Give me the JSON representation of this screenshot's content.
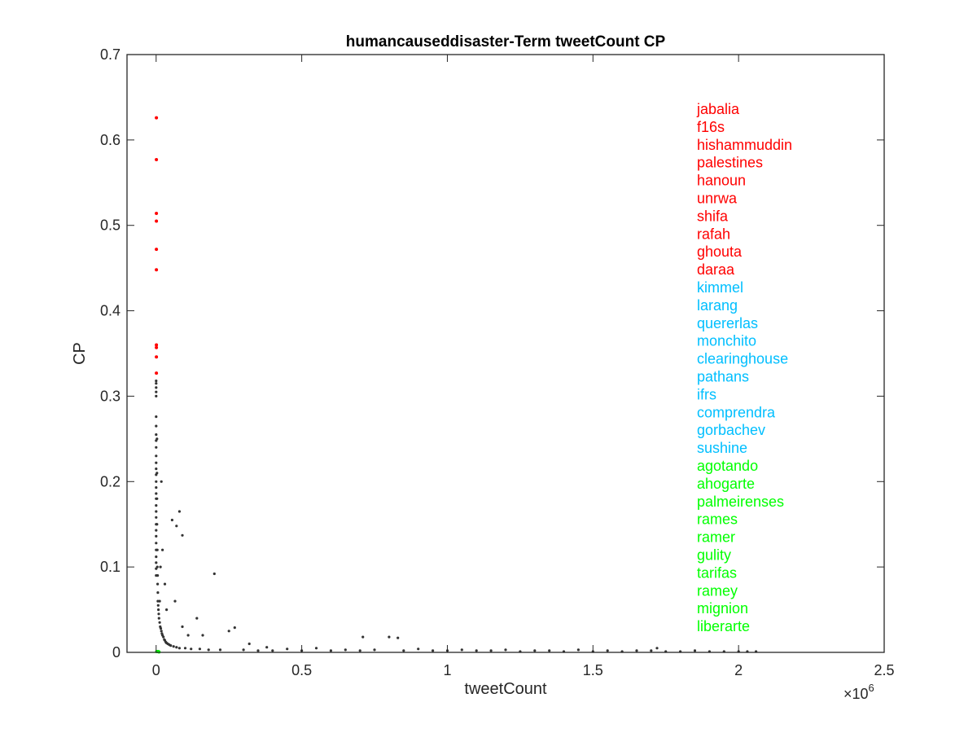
{
  "chart_data": {
    "type": "scatter",
    "title": "humancauseddisaster-Term tweetCount CP",
    "xlabel": "tweetCount",
    "ylabel": "CP",
    "x_exponent_label": "×10",
    "x_exponent_power": "6",
    "xlim": [
      -100000,
      2500000
    ],
    "ylim": [
      0,
      0.7
    ],
    "x_ticks": [
      0,
      500000,
      1000000,
      1500000,
      2000000,
      2500000
    ],
    "x_tick_labels": [
      "0",
      "0.5",
      "1",
      "1.5",
      "2",
      "2.5"
    ],
    "y_ticks": [
      0,
      0.1,
      0.2,
      0.3,
      0.4,
      0.5,
      0.6,
      0.7
    ],
    "y_tick_labels": [
      "0",
      "0.1",
      "0.2",
      "0.3",
      "0.4",
      "0.5",
      "0.6",
      "0.7"
    ],
    "grid": false,
    "colors": {
      "background_points": "#333333",
      "top": "#ff0000",
      "middle": "#00bfff",
      "bottom": "#00ff00"
    },
    "series": [
      {
        "group": "top",
        "color": "#ff0000",
        "points": [
          {
            "x": 1000,
            "y": 0.626
          },
          {
            "x": 1000,
            "y": 0.577
          },
          {
            "x": 1000,
            "y": 0.514
          },
          {
            "x": 1000,
            "y": 0.505
          },
          {
            "x": 1000,
            "y": 0.472
          },
          {
            "x": 1000,
            "y": 0.448
          },
          {
            "x": 1000,
            "y": 0.36
          },
          {
            "x": 1000,
            "y": 0.357
          },
          {
            "x": 1000,
            "y": 0.346
          },
          {
            "x": 1000,
            "y": 0.327
          }
        ],
        "labels": [
          "jabalia",
          "f16s",
          "hishammuddin",
          "palestines",
          "hanoun",
          "unrwa",
          "shifa",
          "rafah",
          "ghouta",
          "daraa"
        ]
      },
      {
        "group": "middle",
        "color": "#00bfff",
        "points": [],
        "labels": [
          "kimmel",
          "larang",
          "quererlas",
          "monchito",
          "clearinghouse",
          "pathans",
          "ifrs",
          "comprendra",
          "gorbachev",
          "sushine"
        ]
      },
      {
        "group": "bottom",
        "color": "#00ff00",
        "points": [
          {
            "x": 2000,
            "y": 0.001
          },
          {
            "x": 5000,
            "y": 0.001
          },
          {
            "x": 8000,
            "y": 0.001
          },
          {
            "x": 10000,
            "y": 0.0005
          }
        ],
        "labels": [
          "agotando",
          "ahogarte",
          "palmeirenses",
          "rames",
          "ramer",
          "gulity",
          "tarifas",
          "ramey",
          "mignion",
          "liberarte"
        ]
      }
    ],
    "background_points": [
      [
        0,
        0.318
      ],
      [
        0,
        0.315
      ],
      [
        0,
        0.31
      ],
      [
        0,
        0.305
      ],
      [
        0,
        0.3
      ],
      [
        0,
        0.276
      ],
      [
        0,
        0.265
      ],
      [
        0,
        0.255
      ],
      [
        0,
        0.248
      ],
      [
        0,
        0.24
      ],
      [
        0,
        0.23
      ],
      [
        0,
        0.222
      ],
      [
        0,
        0.215
      ],
      [
        0,
        0.208
      ],
      [
        0,
        0.2
      ],
      [
        0,
        0.193
      ],
      [
        0,
        0.186
      ],
      [
        0,
        0.18
      ],
      [
        0,
        0.172
      ],
      [
        0,
        0.165
      ],
      [
        0,
        0.158
      ],
      [
        0,
        0.15
      ],
      [
        0,
        0.143
      ],
      [
        0,
        0.136
      ],
      [
        0,
        0.128
      ],
      [
        0,
        0.12
      ],
      [
        0,
        0.112
      ],
      [
        0,
        0.105
      ],
      [
        0,
        0.098
      ],
      [
        0,
        0.09
      ],
      [
        3000,
        0.25
      ],
      [
        3000,
        0.21
      ],
      [
        3000,
        0.18
      ],
      [
        3000,
        0.15
      ],
      [
        4000,
        0.12
      ],
      [
        4000,
        0.1
      ],
      [
        5000,
        0.09
      ],
      [
        5000,
        0.08
      ],
      [
        6000,
        0.07
      ],
      [
        6000,
        0.06
      ],
      [
        7000,
        0.055
      ],
      [
        8000,
        0.05
      ],
      [
        9000,
        0.045
      ],
      [
        10000,
        0.04
      ],
      [
        12000,
        0.06
      ],
      [
        12000,
        0.035
      ],
      [
        14000,
        0.03
      ],
      [
        15000,
        0.1
      ],
      [
        16000,
        0.028
      ],
      [
        18000,
        0.2
      ],
      [
        18000,
        0.025
      ],
      [
        20000,
        0.022
      ],
      [
        22000,
        0.12
      ],
      [
        22000,
        0.02
      ],
      [
        25000,
        0.018
      ],
      [
        28000,
        0.015
      ],
      [
        30000,
        0.08
      ],
      [
        30000,
        0.014
      ],
      [
        33000,
        0.012
      ],
      [
        36000,
        0.05
      ],
      [
        36000,
        0.011
      ],
      [
        40000,
        0.01
      ],
      [
        45000,
        0.009
      ],
      [
        50000,
        0.008
      ],
      [
        55000,
        0.155
      ],
      [
        60000,
        0.007
      ],
      [
        65000,
        0.06
      ],
      [
        70000,
        0.148
      ],
      [
        70000,
        0.006
      ],
      [
        80000,
        0.165
      ],
      [
        80000,
        0.005
      ],
      [
        90000,
        0.137
      ],
      [
        90000,
        0.03
      ],
      [
        100000,
        0.005
      ],
      [
        110000,
        0.02
      ],
      [
        120000,
        0.004
      ],
      [
        140000,
        0.04
      ],
      [
        150000,
        0.004
      ],
      [
        160000,
        0.02
      ],
      [
        180000,
        0.003
      ],
      [
        200000,
        0.092
      ],
      [
        220000,
        0.003
      ],
      [
        250000,
        0.025
      ],
      [
        270000,
        0.029
      ],
      [
        300000,
        0.003
      ],
      [
        320000,
        0.01
      ],
      [
        350000,
        0.002
      ],
      [
        380000,
        0.006
      ],
      [
        400000,
        0.002
      ],
      [
        450000,
        0.004
      ],
      [
        500000,
        0.002
      ],
      [
        550000,
        0.005
      ],
      [
        600000,
        0.002
      ],
      [
        650000,
        0.003
      ],
      [
        700000,
        0.002
      ],
      [
        710000,
        0.018
      ],
      [
        750000,
        0.003
      ],
      [
        800000,
        0.018
      ],
      [
        830000,
        0.017
      ],
      [
        850000,
        0.002
      ],
      [
        900000,
        0.004
      ],
      [
        950000,
        0.002
      ],
      [
        1000000,
        0.002
      ],
      [
        1050000,
        0.003
      ],
      [
        1100000,
        0.002
      ],
      [
        1150000,
        0.002
      ],
      [
        1200000,
        0.003
      ],
      [
        1250000,
        0.001
      ],
      [
        1300000,
        0.002
      ],
      [
        1350000,
        0.002
      ],
      [
        1400000,
        0.001
      ],
      [
        1450000,
        0.003
      ],
      [
        1500000,
        0.001
      ],
      [
        1550000,
        0.002
      ],
      [
        1600000,
        0.001
      ],
      [
        1650000,
        0.002
      ],
      [
        1700000,
        0.002
      ],
      [
        1720000,
        0.005
      ],
      [
        1750000,
        0.001
      ],
      [
        1800000,
        0.001
      ],
      [
        1850000,
        0.002
      ],
      [
        1900000,
        0.001
      ],
      [
        1950000,
        0.001
      ],
      [
        2000000,
        0.001
      ],
      [
        2030000,
        0.001
      ],
      [
        2060000,
        0.001
      ]
    ]
  }
}
